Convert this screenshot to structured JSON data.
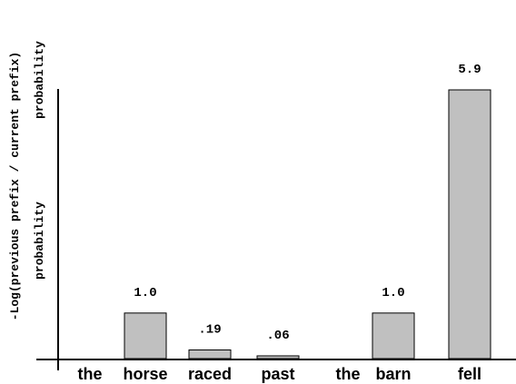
{
  "chart_data": {
    "type": "bar",
    "title": "",
    "xlabel": "",
    "ylabel_line1": "-Log(previous prefix / current prefix)",
    "ylabel_line2": "probability",
    "ylabel_line3": "probability",
    "ylim": [
      0,
      5.9
    ],
    "grid": false,
    "categories": [
      "the",
      "horse",
      "raced",
      "past",
      "the",
      "barn",
      "fell"
    ],
    "values": [
      0,
      1.0,
      0.19,
      0.06,
      0,
      1.0,
      5.9
    ],
    "data_labels": [
      "",
      "1.0",
      ".19",
      ".06",
      "",
      "1.0",
      "5.9"
    ],
    "bar_color": "#c0c0c0",
    "bar_stroke": "#000000"
  }
}
